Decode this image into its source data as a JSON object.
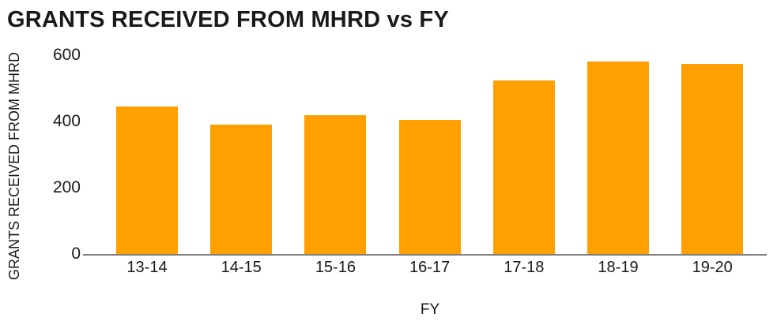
{
  "chart_data": {
    "type": "bar",
    "title": "GRANTS RECEIVED FROM MHRD vs FY",
    "xlabel": "FY",
    "ylabel": "GRANTS RECEIVED FROM MHRD",
    "categories": [
      "13-14",
      "14-15",
      "15-16",
      "16-17",
      "17-18",
      "18-19",
      "19-20"
    ],
    "values": [
      445,
      390,
      420,
      405,
      525,
      580,
      575
    ],
    "ylim": [
      0,
      600
    ],
    "yticks": [
      0,
      200,
      400,
      600
    ],
    "grid": false,
    "legend": false,
    "colors": {
      "bar": "#FFA000",
      "axis_line": "#7F7F7F",
      "text": "#1A1A1A",
      "background": "#FFFFFF"
    }
  }
}
